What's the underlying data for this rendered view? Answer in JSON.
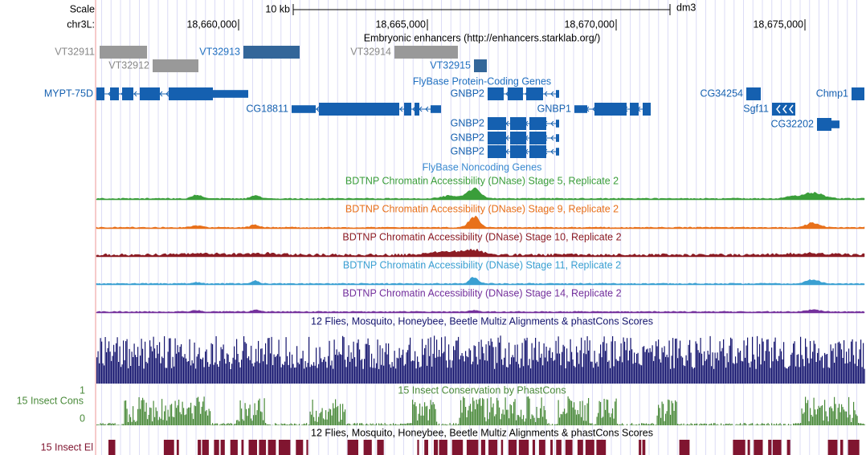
{
  "ruler": {
    "scale_label": "Scale",
    "chrom_label": "chr3L:",
    "scale_bar": "10 kb",
    "assembly": "dm3",
    "ticks": [
      "18,660,000",
      "18,665,000",
      "18,670,000",
      "18,675,000"
    ]
  },
  "enhancers": {
    "title": "Embryonic enhancers (http://enhancers.starklab.org/)",
    "features": [
      "VT32911",
      "VT32912",
      "VT32913",
      "VT32914",
      "VT32915"
    ]
  },
  "genes": {
    "title": "FlyBase Protein-Coding Genes",
    "features": [
      "MYPT-75D",
      "CG18811",
      "GNBP2",
      "GNBP1",
      "GNBP2",
      "GNBP2",
      "GNBP2",
      "CG34254",
      "Sgf11",
      "CG32202",
      "Chmp1"
    ]
  },
  "noncoding": {
    "title": "FlyBase Noncoding Genes"
  },
  "dnase_tracks": [
    {
      "title": "BDTNP Chromatin Accessibility (DNase) Stage 5, Replicate 2",
      "color": "#3a9e3a"
    },
    {
      "title": "BDTNP Chromatin Accessibility (DNase) Stage 9, Replicate 2",
      "color": "#e8701a"
    },
    {
      "title": "BDTNP Chromatin Accessibility (DNase) Stage 10, Replicate 2",
      "color": "#8c1c24"
    },
    {
      "title": "BDTNP Chromatin Accessibility (DNase) Stage 11, Replicate 2",
      "color": "#3aa0d2"
    },
    {
      "title": "BDTNP Chromatin Accessibility (DNase) Stage 14, Replicate 2",
      "color": "#74309c"
    }
  ],
  "multiz": {
    "title": "12 Flies, Mosquito, Honeybee, Beetle Multiz Alignments & phastCons Scores"
  },
  "conservation": {
    "title": "15 Insect Conservation by PhastCons",
    "label": "15 Insect Cons",
    "y_top": 1,
    "y_bottom": 0
  },
  "elements": {
    "title": "12 Flies, Mosquito, Honeybee, Beetle Multiz Alignments & phastCons Scores",
    "label": "15 Insect El"
  }
}
